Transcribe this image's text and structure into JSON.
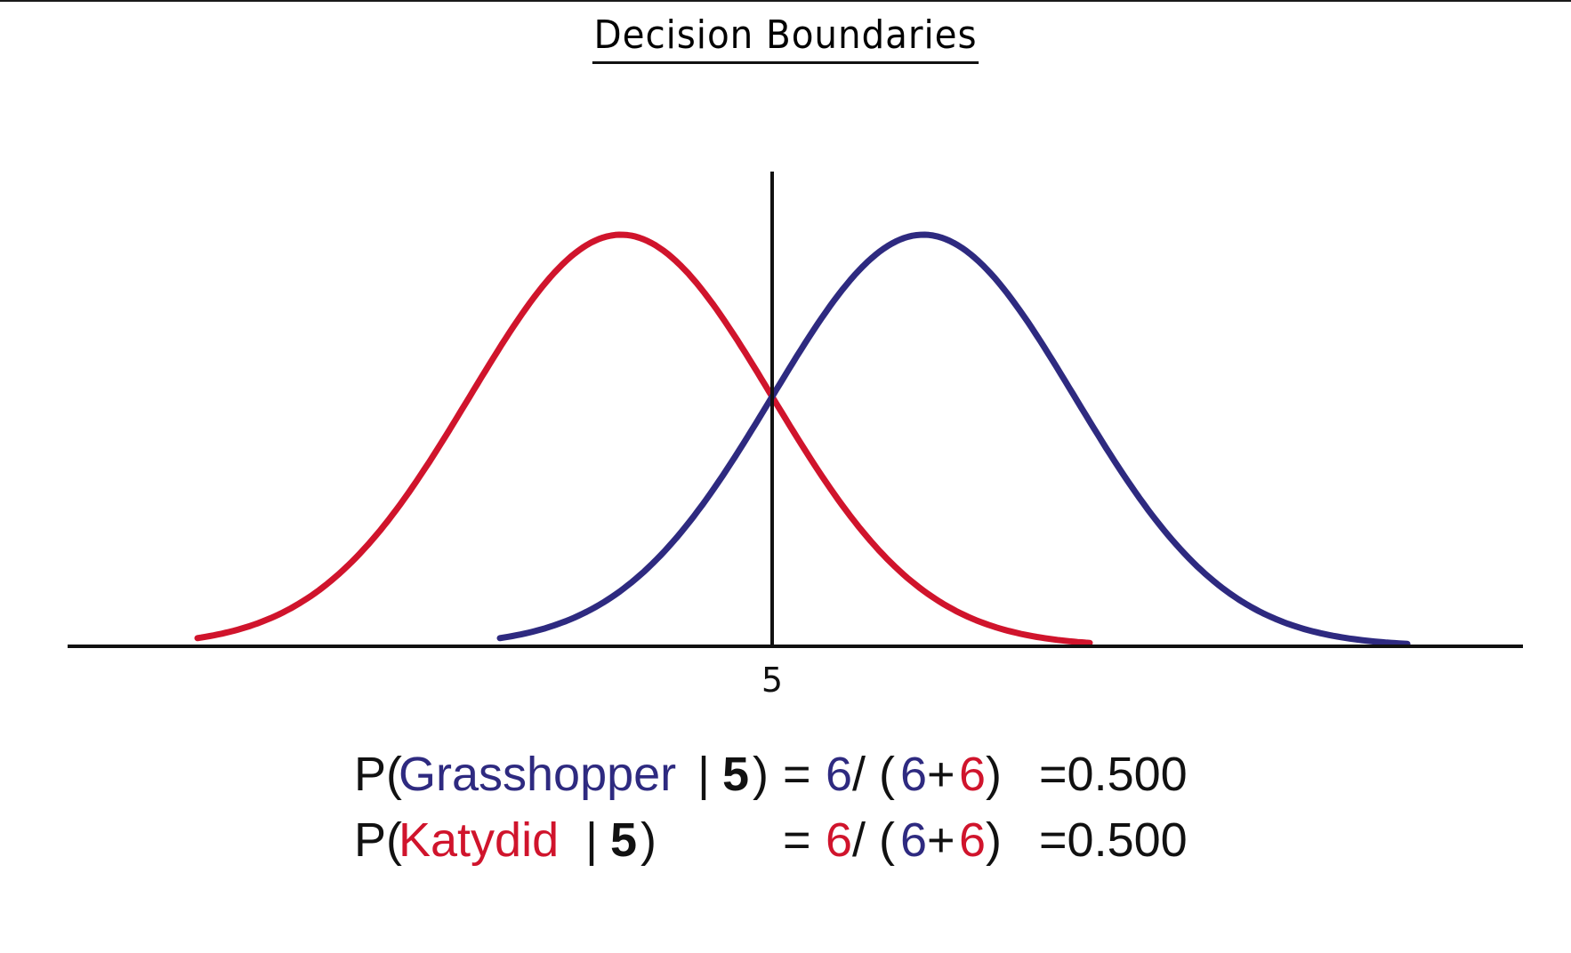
{
  "title": "Decision Boundaries",
  "colors": {
    "grasshopper": "#2e2a80",
    "katydid": "#d0142c",
    "axis": "#111111"
  },
  "chart_data": {
    "type": "line",
    "title": "Decision Boundaries",
    "xlabel": "",
    "ylabel": "",
    "tick_labels": [
      "5"
    ],
    "decision_boundary_x": 5,
    "xlim": [
      0.5,
      10.5
    ],
    "series": [
      {
        "color": "#d0142c",
        "mean": 4,
        "sd": 1,
        "x_range": [
          1.2,
          7.1
        ]
      },
      {
        "color": "#2e2a80",
        "mean": 6,
        "sd": 1,
        "x_range": [
          3.2,
          9.2
        ]
      }
    ],
    "grid": false
  },
  "equations": {
    "line1": {
      "p_open": "P(",
      "class_name": "Grasshopper",
      "bar": " | ",
      "value": "5",
      "p_close": ")",
      "eq": "=",
      "num": "6",
      "slash": "/ (",
      "a": "6",
      "plus": "+",
      "b": "6",
      "paren": ")",
      "result": "=0.500"
    },
    "line2": {
      "p_open": "P(",
      "class_name": "Katydid",
      "bar": " | ",
      "value": "5",
      "p_close": ")",
      "eq": "=",
      "num": "6",
      "slash": "/ (",
      "a": "6",
      "plus": "+",
      "b": "6",
      "paren": ")",
      "result": "=0.500"
    }
  }
}
